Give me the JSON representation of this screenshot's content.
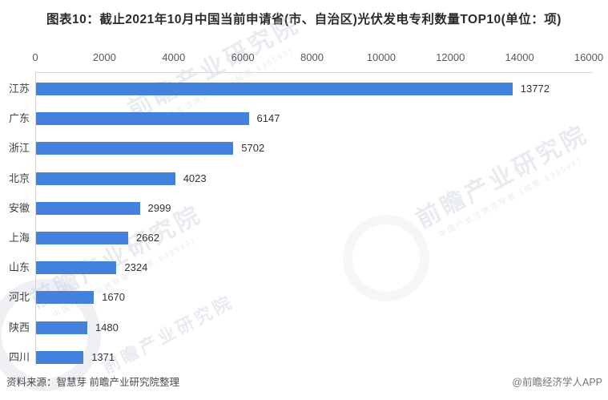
{
  "title": "图表10：截止2021年10月中国当前申请省(市、自治区)光伏发电专利数量TOP10(单位：项)",
  "chart_data": {
    "type": "bar",
    "orientation": "horizontal",
    "title": "图表10：截止2021年10月中国当前申请省(市、自治区)光伏发电专利数量TOP10(单位：项)",
    "unit": "项",
    "categories": [
      "江苏",
      "广东",
      "浙江",
      "北京",
      "安徽",
      "上海",
      "山东",
      "河北",
      "陕西",
      "四川"
    ],
    "values": [
      13772,
      6147,
      5702,
      4023,
      2999,
      2662,
      2324,
      1670,
      1480,
      1371
    ],
    "xlim": [
      0,
      16000
    ],
    "xticks": [
      0,
      2000,
      4000,
      6000,
      8000,
      10000,
      12000,
      14000,
      16000
    ],
    "xlabel": "",
    "ylabel": "",
    "grid": false,
    "legend": "none",
    "value_labels": true,
    "bar_color": "#4381dc",
    "axis_line_color": "#d9d9d9"
  },
  "footer": {
    "source": "资料来源：智慧芽 前瞻产业研究院整理",
    "credit": "@前瞻经济学人APP"
  },
  "watermark": {
    "main": "前瞻产业研究院",
    "sub": "中国产业咨询领导者（股票·839599）"
  }
}
